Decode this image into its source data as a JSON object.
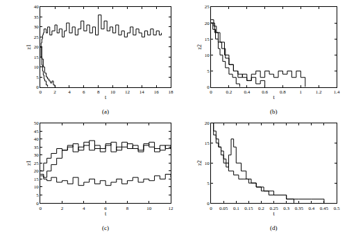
{
  "chart_data": [
    {
      "type": "line",
      "line_style": "step",
      "caption": "(a)",
      "x_label": "t",
      "y_label": "z1",
      "xlim": [
        0,
        18
      ],
      "xticks": [
        0,
        2,
        4,
        6,
        8,
        10,
        12,
        14,
        16,
        18
      ],
      "ylim": [
        0,
        40
      ],
      "yticks": [
        0,
        5,
        10,
        15,
        20,
        25,
        30,
        35,
        40
      ],
      "grid": false,
      "series": [
        {
          "color": "#000000",
          "x": [
            0,
            0.1,
            0.2,
            0.3,
            0.4,
            0.5,
            0.8,
            1.0,
            1.3,
            1.6,
            2.0,
            2.3,
            2.6,
            3.0,
            3.3,
            3.6,
            4.0,
            4.4,
            4.8,
            5.2,
            5.6,
            6.0,
            6.4,
            6.8,
            7.2,
            7.6,
            8.0,
            8.4,
            8.8,
            9.2,
            9.6,
            10.0,
            10.4,
            10.8,
            11.2,
            11.6,
            12.0,
            12.4,
            12.8,
            13.2,
            13.6,
            14.0,
            14.4,
            14.8,
            15.2,
            15.6,
            16.0,
            16.4,
            16.7
          ],
          "values": [
            20,
            22,
            24,
            26,
            27,
            29,
            27,
            30,
            26,
            28,
            31,
            27,
            29,
            25,
            28,
            32,
            27,
            30,
            26,
            29,
            33,
            28,
            31,
            27,
            30,
            26,
            36,
            29,
            33,
            28,
            30,
            27,
            31,
            26,
            28,
            25,
            27,
            30,
            26,
            29,
            27,
            25,
            28,
            26,
            29,
            26,
            28,
            26,
            27
          ]
        },
        {
          "color": "#000000",
          "x": [
            0,
            0.1,
            0.2,
            0.3,
            0.4,
            0.5,
            0.6,
            0.8,
            1.0
          ],
          "values": [
            20,
            15,
            11,
            8,
            6,
            4,
            3,
            1,
            0
          ]
        },
        {
          "color": "#000000",
          "x": [
            0,
            0.2,
            0.4,
            0.6,
            0.8,
            1.0,
            1.2,
            1.4,
            1.6,
            1.8,
            2.0
          ],
          "values": [
            20,
            14,
            10,
            7,
            5,
            4,
            3,
            2,
            3,
            1,
            0
          ]
        }
      ]
    },
    {
      "type": "line",
      "line_style": "step",
      "caption": "(b)",
      "x_label": "t",
      "y_label": "z2",
      "xlim": [
        0,
        1.4
      ],
      "xticks": [
        0,
        0.2,
        0.4,
        0.6,
        0.8,
        1,
        1.2,
        1.4
      ],
      "ylim": [
        0,
        25
      ],
      "yticks": [
        0,
        5,
        10,
        15,
        20,
        25
      ],
      "grid": false,
      "series": [
        {
          "color": "#000000",
          "x": [
            0,
            0.02,
            0.05,
            0.08,
            0.1,
            0.13,
            0.16,
            0.2,
            0.24,
            0.28,
            0.32
          ],
          "values": [
            20,
            18,
            15,
            12,
            10,
            8,
            6,
            4,
            3,
            1,
            0
          ]
        },
        {
          "color": "#000000",
          "x": [
            0,
            0.03,
            0.06,
            0.1,
            0.15,
            0.2,
            0.25,
            0.3,
            0.35,
            0.4,
            0.45,
            0.5,
            0.55,
            0.6
          ],
          "values": [
            21,
            19,
            17,
            14,
            10,
            7,
            5,
            3,
            4,
            2,
            3,
            1,
            2,
            0
          ]
        },
        {
          "color": "#000000",
          "x": [
            0,
            0.04,
            0.08,
            0.12,
            0.16,
            0.2,
            0.25,
            0.3,
            0.35,
            0.4,
            0.45,
            0.5,
            0.55,
            0.6,
            0.65,
            0.7,
            0.75,
            0.8,
            0.85,
            0.9,
            0.95,
            1.0,
            1.05
          ],
          "values": [
            20,
            17,
            14,
            12,
            9,
            7,
            5,
            4,
            3,
            2,
            4,
            5,
            3,
            5,
            4,
            3,
            5,
            4,
            5,
            3,
            5,
            3,
            0
          ]
        }
      ]
    },
    {
      "type": "line",
      "line_style": "step",
      "caption": "(c)",
      "x_label": "t",
      "y_label": "z1",
      "xlim": [
        0,
        12
      ],
      "xticks": [
        0,
        2,
        4,
        6,
        8,
        10,
        12
      ],
      "ylim": [
        0,
        50
      ],
      "yticks": [
        0,
        5,
        10,
        15,
        20,
        25,
        30,
        35,
        40,
        45,
        50
      ],
      "grid": false,
      "series": [
        {
          "color": "#000000",
          "x": [
            0,
            0.3,
            0.6,
            1,
            1.5,
            2,
            2.5,
            3,
            3.5,
            4,
            4.5,
            5,
            5.5,
            6,
            6.5,
            7,
            7.5,
            8,
            8.5,
            9,
            9.5,
            10,
            10.5,
            11,
            11.5,
            12
          ],
          "values": [
            20,
            25,
            28,
            31,
            34,
            33,
            36,
            32,
            35,
            38,
            33,
            36,
            34,
            37,
            32,
            35,
            38,
            34,
            36,
            33,
            37,
            35,
            32,
            36,
            34,
            35
          ]
        },
        {
          "color": "#000000",
          "x": [
            0,
            0.3,
            0.6,
            1,
            1.5,
            2,
            2.5,
            3,
            3.5,
            4,
            4.5,
            5,
            5.5,
            6,
            6.5,
            7,
            7.5,
            8,
            8.5,
            9,
            9.5,
            10,
            10.5,
            11,
            11.5,
            12
          ],
          "values": [
            18,
            16,
            20,
            24,
            28,
            33,
            35,
            37,
            33,
            36,
            39,
            34,
            32,
            36,
            38,
            33,
            35,
            37,
            34,
            32,
            36,
            38,
            34,
            33,
            36,
            34
          ]
        },
        {
          "color": "#000000",
          "x": [
            0,
            0.3,
            0.6,
            1,
            1.5,
            2,
            2.5,
            3,
            3.5,
            4,
            4.5,
            5,
            5.5,
            6,
            6.5,
            7,
            7.5,
            8,
            8.5,
            9,
            9.5,
            10,
            10.5,
            11,
            11.5,
            12
          ],
          "values": [
            17,
            15,
            14,
            16,
            13,
            14,
            12,
            16,
            11,
            13,
            15,
            12,
            14,
            11,
            13,
            15,
            12,
            14,
            16,
            13,
            15,
            14,
            17,
            15,
            18,
            16
          ]
        }
      ]
    },
    {
      "type": "line",
      "line_style": "step",
      "caption": "(d)",
      "x_label": "t",
      "y_label": "z2",
      "xlim": [
        0,
        0.5
      ],
      "xticks": [
        0,
        0.05,
        0.1,
        0.15,
        0.2,
        0.25,
        0.3,
        0.35,
        0.4,
        0.45,
        0.5
      ],
      "ylim": [
        0,
        20
      ],
      "yticks": [
        0,
        5,
        10,
        15,
        20
      ],
      "grid": false,
      "series": [
        {
          "color": "#000000",
          "x": [
            0,
            0.01,
            0.02,
            0.03,
            0.04,
            0.05,
            0.06,
            0.07,
            0.08,
            0.09,
            0.1,
            0.12,
            0.14,
            0.16,
            0.18,
            0.2,
            0.23,
            0.26,
            0.3,
            0.33
          ],
          "values": [
            20,
            18,
            16,
            14,
            13,
            11,
            9,
            12,
            16,
            14,
            10,
            8,
            6,
            5,
            4,
            3,
            2,
            2,
            1,
            0
          ]
        },
        {
          "color": "#000000",
          "x": [
            0,
            0.01,
            0.02,
            0.03,
            0.04,
            0.05,
            0.07,
            0.09,
            0.11,
            0.13,
            0.15,
            0.18,
            0.21,
            0.25,
            0.3,
            0.35,
            0.4,
            0.45
          ],
          "values": [
            20,
            17,
            15,
            14,
            12,
            10,
            8,
            7,
            6,
            6,
            5,
            4,
            3,
            2,
            1,
            1,
            1,
            0
          ]
        }
      ]
    }
  ]
}
